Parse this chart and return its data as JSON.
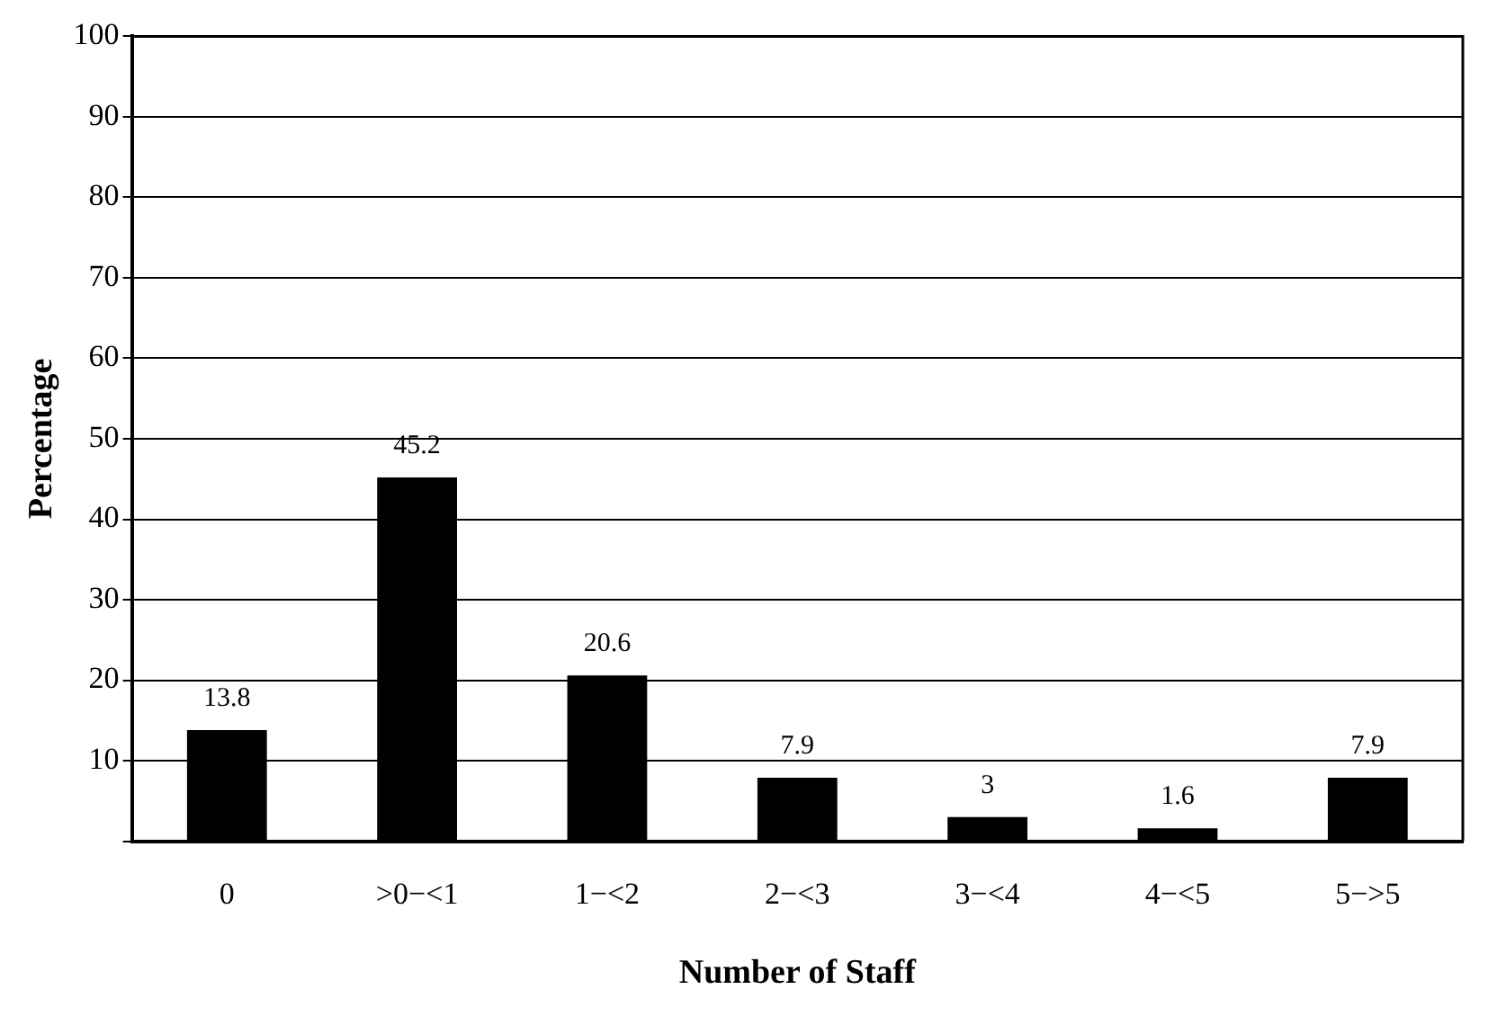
{
  "chart_data": {
    "type": "bar",
    "xlabel": "Number of Staff",
    "ylabel": "Percentage",
    "categories": [
      "0",
      ">0−<1",
      "1−<2",
      "2−<3",
      "3−<4",
      "4−<5",
      "5−>5"
    ],
    "values": [
      13.8,
      45.2,
      20.6,
      7.9,
      3,
      1.6,
      7.9
    ],
    "color": "#000000",
    "ylim": [
      0,
      100
    ],
    "yticks": [
      {
        "value": 0,
        "label": null
      },
      10,
      20,
      30,
      40,
      50,
      60,
      70,
      80,
      90,
      100
    ],
    "grid": "y",
    "data_labels": true
  }
}
